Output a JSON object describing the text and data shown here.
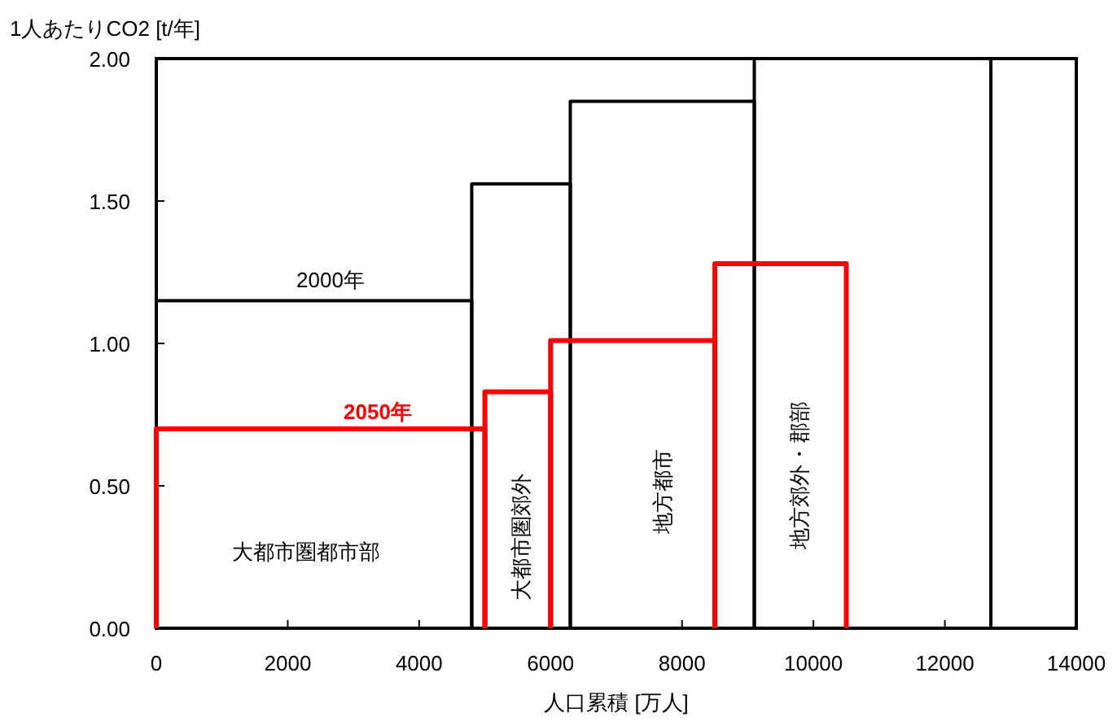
{
  "chart_data": {
    "type": "line",
    "xlabel": "人口累積 [万人]",
    "ylabel": "1人あたりCO2 [t/年]",
    "xlim": [
      0,
      14000
    ],
    "ylim": [
      0,
      2
    ],
    "xticks": [
      0,
      2000,
      4000,
      6000,
      8000,
      10000,
      12000,
      14000
    ],
    "yticks": [
      {
        "value": 0,
        "label": "0.00"
      },
      {
        "value": 0.5,
        "label": "0.50"
      },
      {
        "value": 1,
        "label": "1.00"
      },
      {
        "value": 1.5,
        "label": "1.50"
      },
      {
        "value": 2,
        "label": "2.00"
      }
    ],
    "series": [
      {
        "color": "#000000",
        "x": [
          0,
          0,
          4800,
          4800
        ],
        "values": [
          0,
          1.15,
          1.15,
          0
        ]
      },
      {
        "color": "#000000",
        "x": [
          4800,
          4800,
          6300,
          6300
        ],
        "values": [
          0,
          1.56,
          1.56,
          0
        ]
      },
      {
        "color": "#000000",
        "x": [
          6300,
          6300,
          9100,
          9100
        ],
        "values": [
          0,
          1.85,
          1.85,
          0
        ]
      },
      {
        "color": "#000000",
        "x": [
          9100,
          9100,
          12700,
          12700
        ],
        "values": [
          0,
          2.0,
          2.0,
          0
        ]
      },
      {
        "color": "#ff0000",
        "x": [
          0,
          0,
          5000,
          5000
        ],
        "values": [
          0,
          0.7,
          0.7,
          0
        ]
      },
      {
        "color": "#ff0000",
        "x": [
          5000,
          5000,
          6000,
          6000
        ],
        "values": [
          0,
          0.83,
          0.83,
          0
        ]
      },
      {
        "color": "#ff0000",
        "x": [
          6000,
          6000,
          8500,
          8500
        ],
        "values": [
          0,
          1.01,
          1.01,
          0
        ]
      },
      {
        "color": "#ff0000",
        "x": [
          8500,
          8500,
          10500,
          10500
        ],
        "values": [
          0,
          1.28,
          1.28,
          0
        ]
      }
    ],
    "annotations": [
      "2000年",
      "2050年",
      "大都市圏都市部",
      "大都市圏郊外",
      "地方都市",
      "地方郊外・郡部"
    ]
  }
}
